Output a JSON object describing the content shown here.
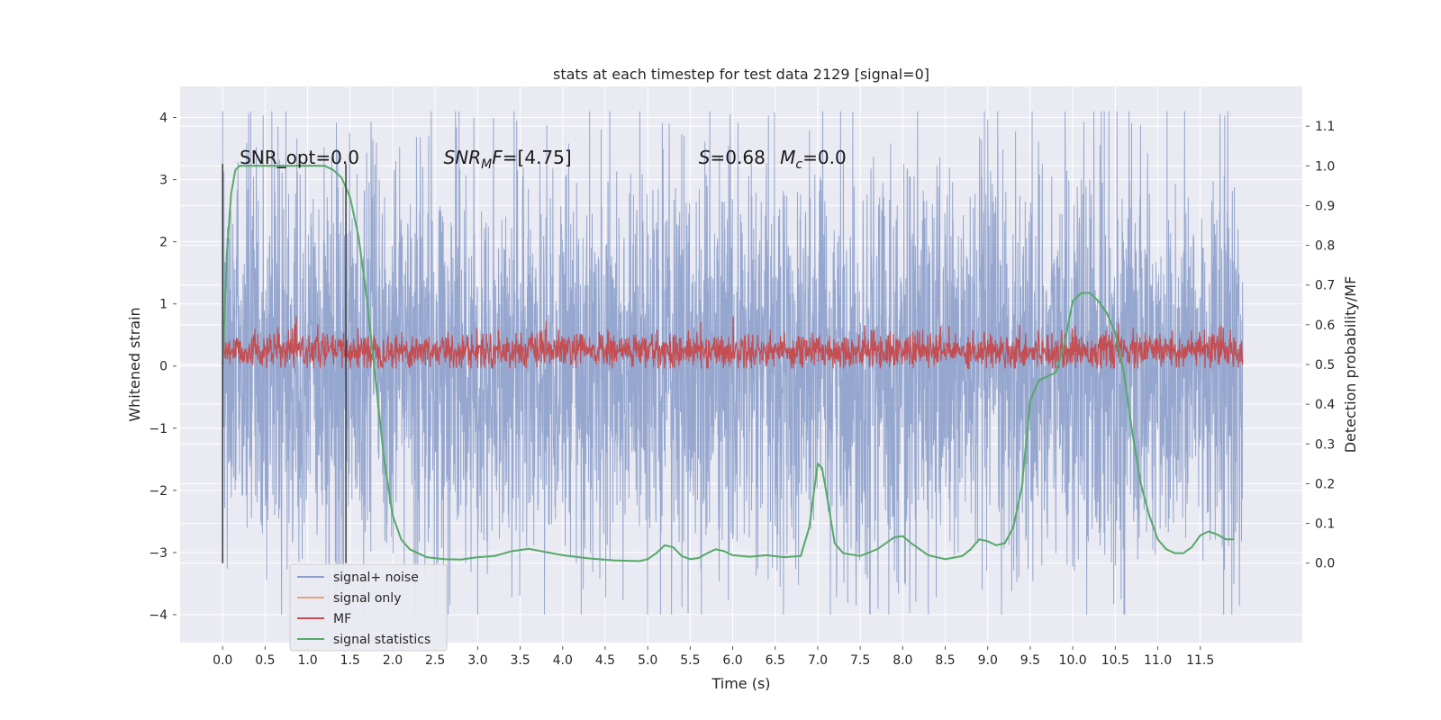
{
  "chart_data": {
    "type": "line",
    "title": "stats at each timestep for test data 2129 [signal=0]",
    "xlabel": "Time (s)",
    "ylabel_left": "Whitened strain",
    "ylabel_right": "Detection probability/MF",
    "xlim": [
      -0.5,
      12.7
    ],
    "ylim_left": [
      -4.45,
      4.5
    ],
    "ylim_right": [
      -0.2,
      1.2
    ],
    "x_ticks": [
      0.0,
      0.5,
      1.0,
      1.5,
      2.0,
      2.5,
      3.0,
      3.5,
      4.0,
      4.5,
      5.0,
      5.5,
      6.0,
      6.5,
      7.0,
      7.5,
      8.0,
      8.5,
      9.0,
      9.5,
      10.0,
      10.5,
      11.0,
      11.5
    ],
    "x_tick_labels": [
      "0.0",
      "0.5",
      "1.0",
      "1.5",
      "2.0",
      "2.5",
      "3.0",
      "3.5",
      "4.0",
      "4.5",
      "5.0",
      "5.5",
      "6.0",
      "6.5",
      "7.0",
      "7.5",
      "8.0",
      "8.5",
      "9.0",
      "9.5",
      "10.0",
      "10.5",
      "11.0",
      "11.5"
    ],
    "y_left_ticks": [
      -4,
      -3,
      -2,
      -1,
      0,
      1,
      2,
      3,
      4
    ],
    "y_left_tick_labels": [
      "−4",
      "−3",
      "−2",
      "−1",
      "0",
      "1",
      "2",
      "3",
      "4"
    ],
    "y_right_ticks": [
      0.0,
      0.1,
      0.2,
      0.3,
      0.4,
      0.5,
      0.6,
      0.7,
      0.8,
      0.9,
      1.0,
      1.1
    ],
    "y_right_tick_labels": [
      "0.0",
      "0.1",
      "0.2",
      "0.3",
      "0.4",
      "0.5",
      "0.6",
      "0.7",
      "0.8",
      "0.9",
      "1.0",
      "1.1"
    ],
    "grid": true,
    "legend_placement": "lower-left",
    "series": [
      {
        "name": "signal+ noise",
        "axis": "left",
        "color": "#8da0cb",
        "style": "dense-noise",
        "t_range": [
          0.0,
          12.0
        ],
        "band": [
          -1.8,
          1.8
        ],
        "extremes": [
          -4.0,
          4.1
        ]
      },
      {
        "name": "signal only",
        "axis": "left",
        "color": "#e8a07d",
        "style": "flat",
        "values": []
      },
      {
        "name": "MF",
        "axis": "right",
        "color": "#c44e52",
        "style": "dense-noise",
        "t_range": [
          0.0,
          12.0
        ],
        "band": [
          0.51,
          0.56
        ],
        "extremes": [
          0.49,
          0.64
        ]
      },
      {
        "name": "signal statistics",
        "axis": "right",
        "color": "#55a868",
        "style": "line",
        "x": [
          0.0,
          0.05,
          0.1,
          0.15,
          0.2,
          0.3,
          0.5,
          0.8,
          1.0,
          1.2,
          1.3,
          1.4,
          1.5,
          1.6,
          1.7,
          1.8,
          1.9,
          2.0,
          2.1,
          2.2,
          2.4,
          2.6,
          2.8,
          3.0,
          3.2,
          3.4,
          3.6,
          3.8,
          4.0,
          4.3,
          4.6,
          4.9,
          5.0,
          5.1,
          5.2,
          5.3,
          5.4,
          5.5,
          5.6,
          5.7,
          5.8,
          5.9,
          6.0,
          6.2,
          6.4,
          6.6,
          6.8,
          6.9,
          7.0,
          7.05,
          7.1,
          7.2,
          7.3,
          7.5,
          7.7,
          7.9,
          8.0,
          8.1,
          8.3,
          8.5,
          8.7,
          8.8,
          8.9,
          9.0,
          9.1,
          9.2,
          9.3,
          9.4,
          9.5,
          9.6,
          9.7,
          9.8,
          9.9,
          10.0,
          10.1,
          10.2,
          10.3,
          10.4,
          10.5,
          10.6,
          10.7,
          10.8,
          10.9,
          11.0,
          11.1,
          11.2,
          11.3,
          11.4,
          11.5,
          11.6,
          11.7,
          11.8,
          11.9
        ],
        "y": [
          0.5,
          0.78,
          0.93,
          0.99,
          1.0,
          1.0,
          1.0,
          1.0,
          1.0,
          1.0,
          0.99,
          0.97,
          0.92,
          0.82,
          0.66,
          0.46,
          0.26,
          0.12,
          0.06,
          0.035,
          0.015,
          0.01,
          0.009,
          0.015,
          0.018,
          0.03,
          0.036,
          0.028,
          0.02,
          0.012,
          0.007,
          0.005,
          0.01,
          0.025,
          0.045,
          0.04,
          0.018,
          0.01,
          0.013,
          0.025,
          0.035,
          0.03,
          0.02,
          0.016,
          0.02,
          0.015,
          0.018,
          0.09,
          0.25,
          0.24,
          0.18,
          0.05,
          0.025,
          0.018,
          0.035,
          0.065,
          0.068,
          0.05,
          0.02,
          0.01,
          0.018,
          0.035,
          0.06,
          0.055,
          0.045,
          0.05,
          0.09,
          0.19,
          0.41,
          0.46,
          0.47,
          0.48,
          0.55,
          0.66,
          0.68,
          0.68,
          0.66,
          0.63,
          0.58,
          0.48,
          0.33,
          0.2,
          0.12,
          0.06,
          0.035,
          0.025,
          0.025,
          0.04,
          0.07,
          0.08,
          0.072,
          0.06,
          0.06
        ]
      }
    ],
    "vlines": [
      0.0,
      1.45
    ],
    "vline_color": "#3a3a3a",
    "annotations": [
      {
        "id": "snr-opt",
        "text": "SNR_opt=0.0",
        "x": 0.2,
        "y_right": 1.005
      },
      {
        "id": "snr-mf",
        "text": "[4.75]",
        "prefix_italic": "SNR",
        "sub": "M",
        "mid": "F=",
        "x": 2.6,
        "y_right": 1.005
      },
      {
        "id": "s-mc",
        "parts": [
          "S",
          "=0.68   ",
          "M",
          "c",
          "=0.0"
        ],
        "x": 5.6,
        "y_right": 1.005
      }
    ],
    "colors": {
      "plot_bg": "#eaeaf2",
      "grid": "#ffffff",
      "page_bg": "#ffffff"
    }
  }
}
